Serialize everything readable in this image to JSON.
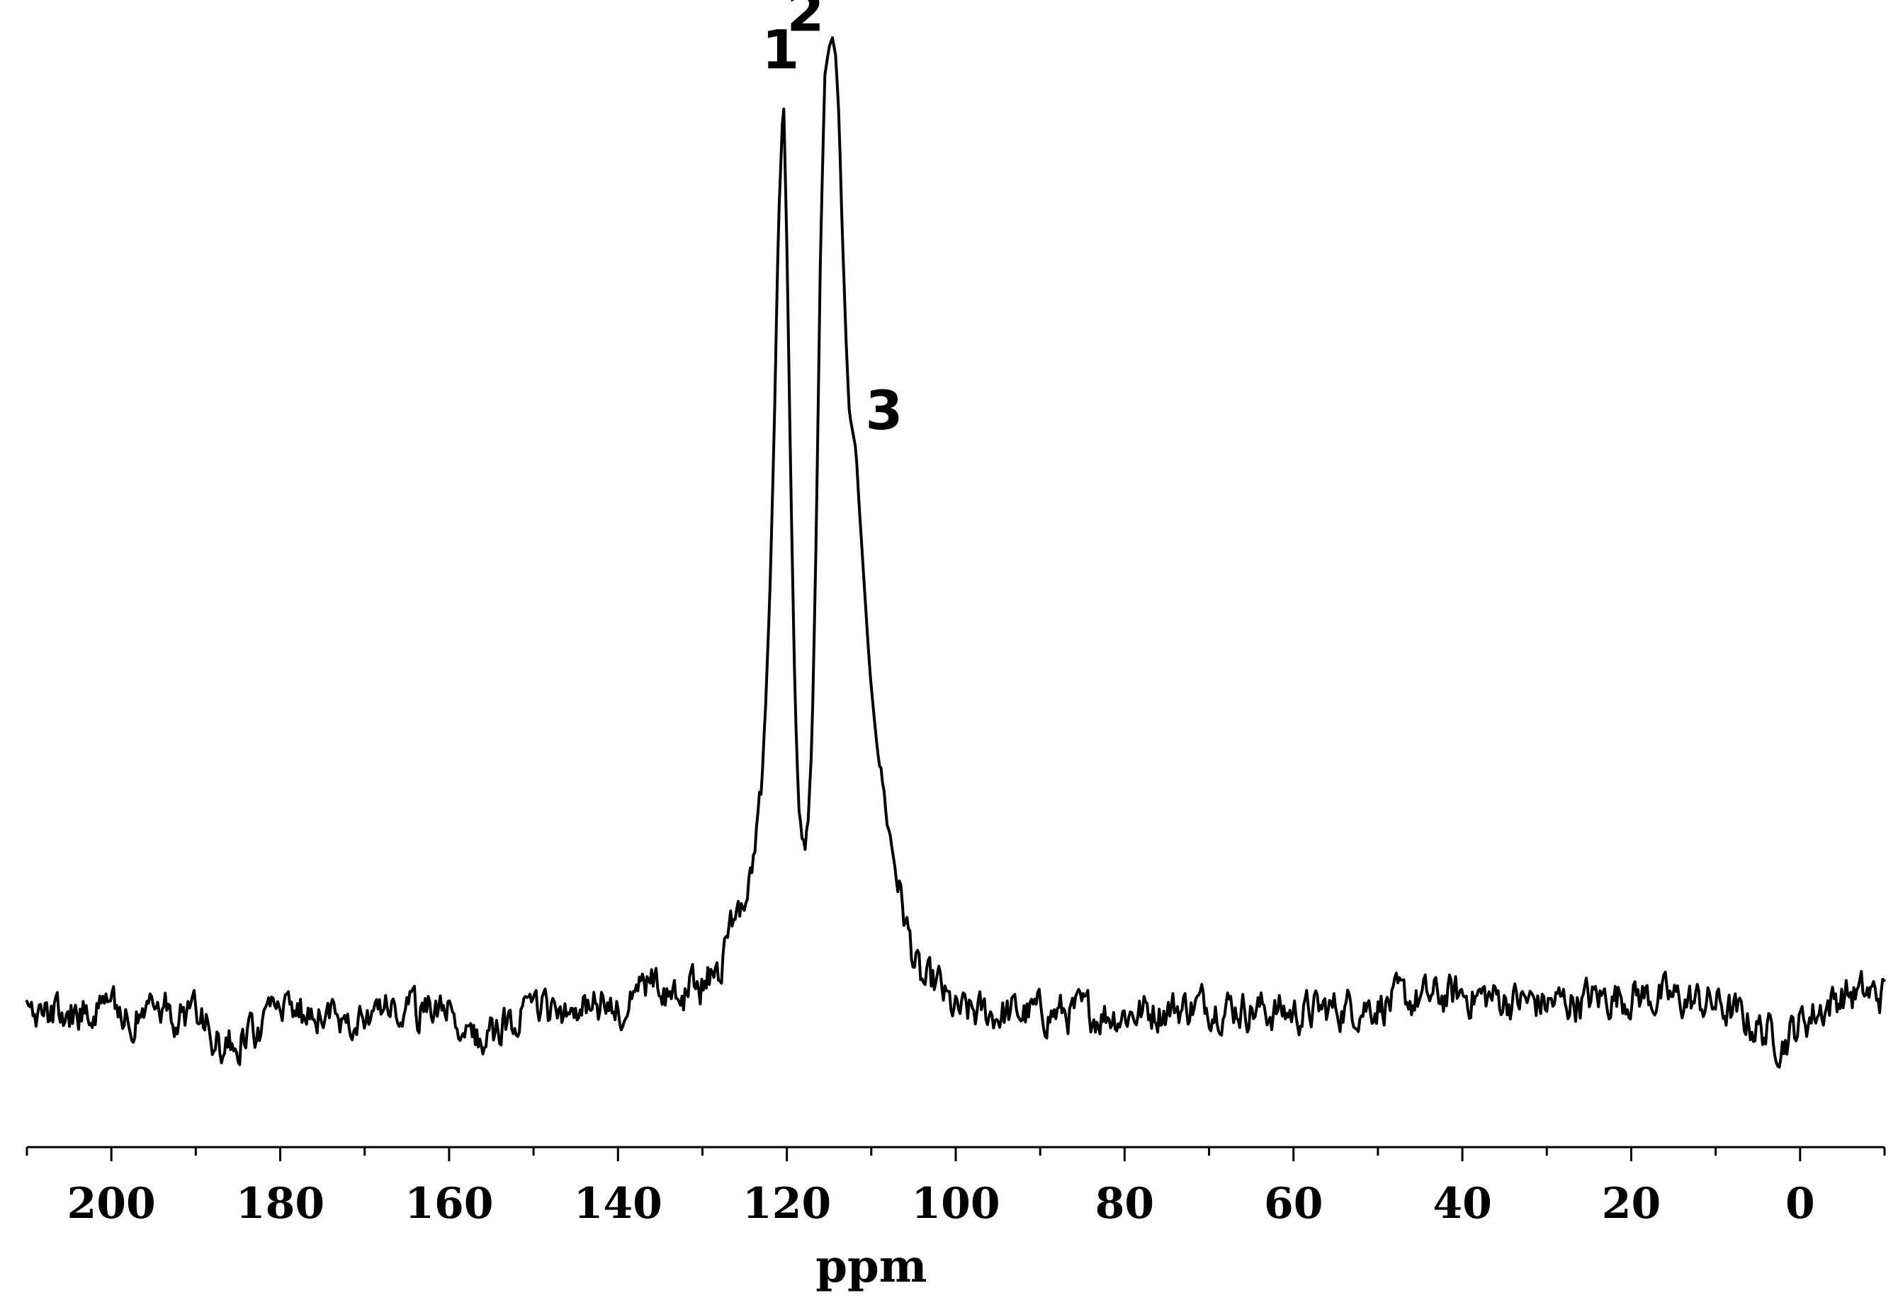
{
  "chart_data": {
    "type": "line",
    "title": "",
    "xlabel": "ppm",
    "ylabel": "",
    "xlim": [
      210,
      -10
    ],
    "x_reversed": true,
    "ylim": [
      -0.12,
      1.05
    ],
    "grid": false,
    "legend": "none",
    "line_color": "#000000",
    "x_ticks_major": [
      200,
      180,
      160,
      140,
      120,
      100,
      80,
      60,
      40,
      20,
      0
    ],
    "x_tick_labels": [
      "200",
      "180",
      "160",
      "140",
      "120",
      "100",
      "80",
      "60",
      "40",
      "20",
      "0"
    ],
    "x_ticks_minor_step": 10,
    "noise_amplitude": 0.022,
    "series": [
      {
        "name": "",
        "x": [
          210,
          200,
          190,
          186.5,
          180,
          170,
          160,
          157.5,
          150,
          140,
          139,
          138,
          133,
          130,
          128,
          127,
          126,
          125,
          124,
          123,
          122.5,
          122,
          121.5,
          121,
          120.4,
          120,
          119.5,
          119,
          118.5,
          118,
          117.5,
          117,
          116.5,
          116,
          115.5,
          115,
          114.6,
          114.2,
          113.8,
          113.5,
          113,
          112.6,
          112.2,
          111.8,
          111.5,
          111,
          110.5,
          110,
          109,
          108,
          107,
          106,
          105,
          104,
          103,
          102,
          101,
          100,
          90,
          80,
          70,
          60,
          50,
          40,
          30,
          20,
          10,
          2,
          0,
          -5,
          -10
        ],
        "y": [
          0.0,
          0.0,
          0.0,
          -0.04,
          0.0,
          0.0,
          0.0,
          -0.03,
          0.0,
          0.01,
          -0.02,
          0.03,
          0.02,
          0.03,
          0.05,
          0.08,
          0.11,
          0.13,
          0.17,
          0.24,
          0.33,
          0.45,
          0.62,
          0.84,
          0.98,
          0.82,
          0.55,
          0.32,
          0.2,
          0.17,
          0.2,
          0.3,
          0.52,
          0.82,
          1.0,
          1.03,
          1.04,
          1.02,
          0.95,
          0.85,
          0.72,
          0.64,
          0.62,
          0.6,
          0.55,
          0.48,
          0.41,
          0.34,
          0.27,
          0.2,
          0.15,
          0.1,
          0.06,
          0.03,
          0.03,
          0.03,
          0.01,
          0.0,
          0.0,
          0.0,
          0.01,
          0.0,
          0.01,
          0.02,
          0.01,
          0.02,
          0.01,
          -0.03,
          -0.01,
          0.02,
          0.02
        ]
      }
    ],
    "annotations": [
      {
        "text": "1",
        "x": 120.4,
        "y": 0.98
      },
      {
        "text": "2",
        "x": 114.6,
        "y": 1.04
      },
      {
        "text": "3",
        "x": 111.5,
        "y": 0.6
      }
    ]
  }
}
